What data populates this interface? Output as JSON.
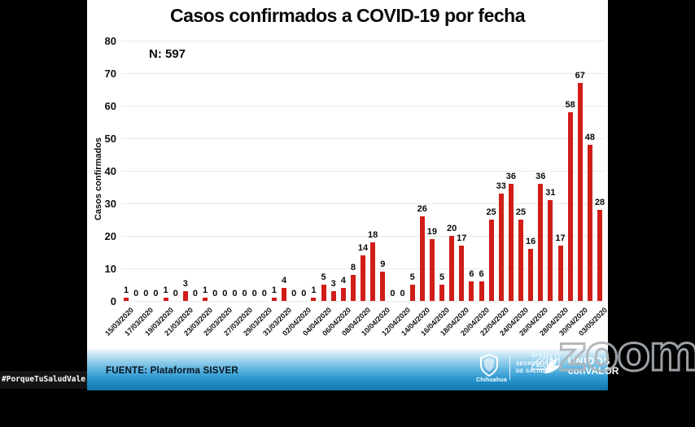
{
  "chart_data": {
    "type": "bar",
    "title": "Casos confirmados a COVID-19 por fecha",
    "annotation": "N: 597",
    "ylabel": "Casos confirmados",
    "ylim": [
      0,
      80
    ],
    "y_ticks": [
      0,
      10,
      20,
      30,
      40,
      50,
      60,
      70,
      80
    ],
    "grid": true,
    "legend": "none",
    "bar_color": "#d01d18",
    "values": [
      1,
      0,
      0,
      0,
      1,
      0,
      3,
      0,
      1,
      0,
      0,
      0,
      0,
      0,
      0,
      1,
      4,
      0,
      0,
      1,
      5,
      3,
      4,
      8,
      14,
      18,
      9,
      0,
      0,
      5,
      26,
      19,
      5,
      20,
      17,
      6,
      6,
      25,
      33,
      36,
      25,
      16,
      36,
      31,
      17,
      58,
      67,
      48,
      28
    ],
    "x_tick_labels": [
      "15/03/2020",
      "17/03/2020",
      "19/03/2020",
      "21/03/2020",
      "23/03/2020",
      "25/03/2020",
      "27/03/2020",
      "29/03/2020",
      "31/03/2020",
      "02/04/2020",
      "04/04/2020",
      "06/04/2020",
      "08/04/2020",
      "10/04/2020",
      "12/04/2020",
      "14/04/2020",
      "16/04/2020",
      "18/04/2020",
      "20/04/2020",
      "22/04/2020",
      "24/04/2020",
      "26/04/2020",
      "28/04/2020",
      "30/04/2020",
      "03/05/2020"
    ],
    "tick_every": 2,
    "value_labels_shown": true
  },
  "footer": {
    "source": "FUENTE: Plataforma SISVER",
    "chihuahua_label": "Chihuahua",
    "secretaria_line1": "SECRETARÍA",
    "secretaria_line2": "DE SALUD",
    "unidos_line1": "UNIDOS",
    "unidos_line2": "conVALOR",
    "anniversary": "20"
  },
  "overlay": {
    "hashtag": "#PorqueTuSaludVale",
    "watermark": "zoom"
  },
  "colors": {
    "bar": "#d01d18",
    "footer_blue": "#2a97cf",
    "panel_bg": "#ffffff",
    "frame_bg": "#000000"
  }
}
